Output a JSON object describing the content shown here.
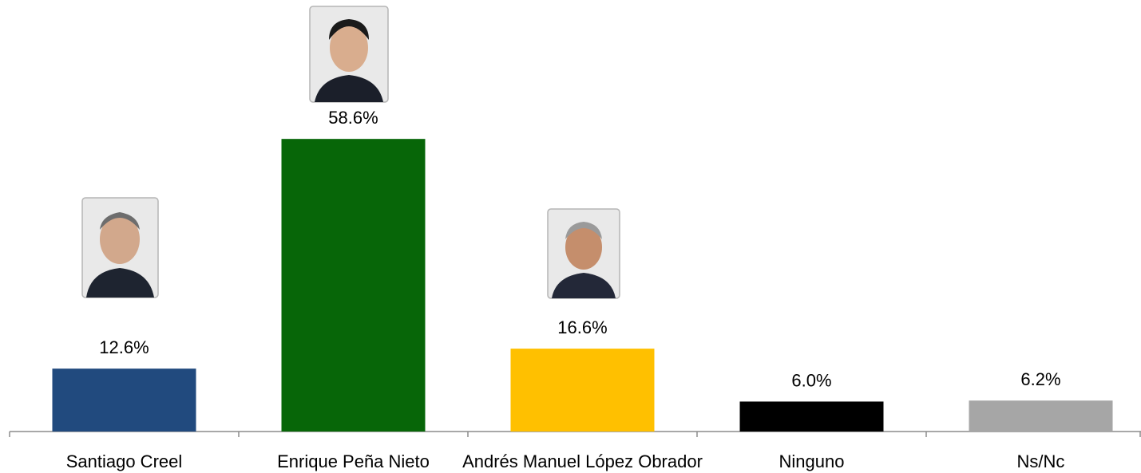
{
  "chart_data": {
    "type": "bar",
    "categories": [
      "Santiago Creel",
      "Enrique Peña Nieto",
      "Andrés Manuel López Obrador",
      "Ninguno",
      "Ns/Nc"
    ],
    "values": [
      12.6,
      58.6,
      16.6,
      6.0,
      6.2
    ],
    "value_labels": [
      "12.6%",
      "58.6%",
      "16.6%",
      "6.0%",
      "6.2%"
    ],
    "colors": [
      "#214a7e",
      "#076608",
      "#ffc000",
      "#000000",
      "#a6a6a6"
    ]
  }
}
